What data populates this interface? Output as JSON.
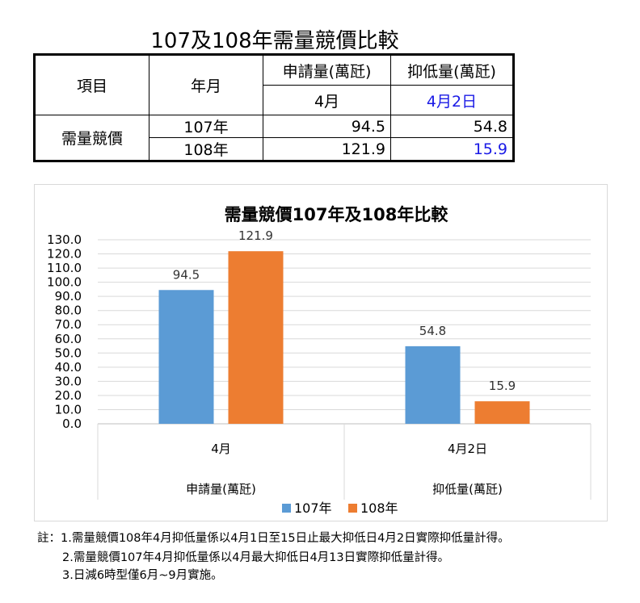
{
  "page_title": "107及108年需量競價比較",
  "table": {
    "col_item": "項目",
    "col_yearmonth": "年月",
    "col_apply": "申請量(萬瓩)",
    "col_reduce": "抑低量(萬瓩)",
    "sub_apply": "4月",
    "sub_reduce": "4月2日",
    "row_group": "需量競價",
    "rows": [
      {
        "year": "107年",
        "apply": "94.5",
        "reduce": "54.8"
      },
      {
        "year": "108年",
        "apply": "121.9",
        "reduce": "15.9"
      }
    ]
  },
  "colors": {
    "series_107": "#5b9bd5",
    "series_108": "#ed7d31",
    "highlight": "#1a1ae6"
  },
  "chart_data": {
    "type": "bar",
    "title": "需量競價107年及108年比較",
    "categories": [
      "4月",
      "4月2日"
    ],
    "category_groups": [
      "申請量(萬瓩)",
      "抑低量(萬瓩)"
    ],
    "series": [
      {
        "name": "107年",
        "values": [
          94.5,
          54.8
        ]
      },
      {
        "name": "108年",
        "values": [
          121.9,
          15.9
        ]
      }
    ],
    "ylim": [
      0,
      130
    ],
    "ytick_step": 10,
    "yticks": [
      "0.0",
      "10.0",
      "20.0",
      "30.0",
      "40.0",
      "50.0",
      "60.0",
      "70.0",
      "80.0",
      "90.0",
      "100.0",
      "110.0",
      "120.0",
      "130.0"
    ],
    "grid": true,
    "legend": "bottom"
  },
  "notes": [
    "註：1.需量競價108年4月抑低量係以4月1日至15日止最大抑低日4月2日實際抑低量計得。",
    "2.需量競價107年4月抑低量係以4月最大抑低日4月13日實際抑低量計得。",
    "3.日減6時型僅6月~9月實施。"
  ]
}
